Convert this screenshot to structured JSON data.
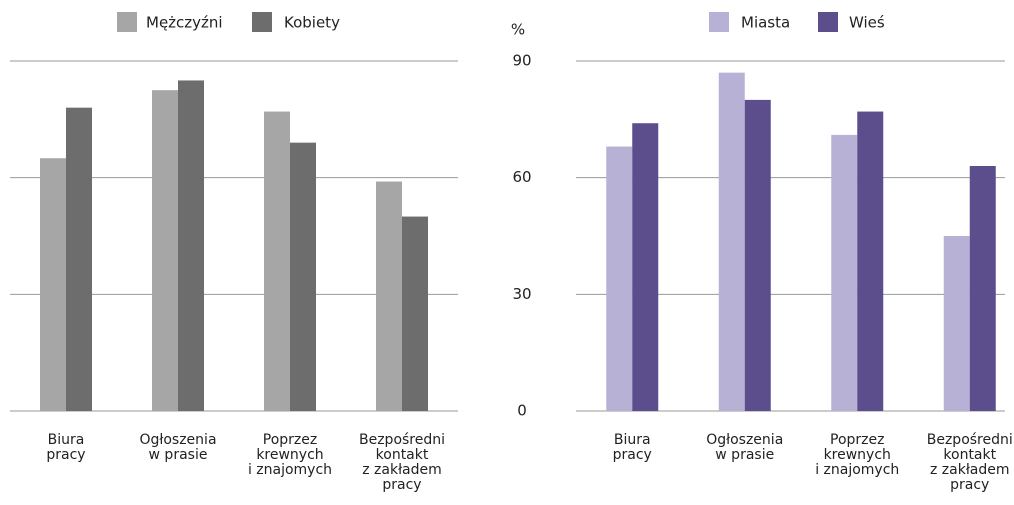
{
  "chart_data": [
    {
      "type": "bar",
      "categories": [
        "Biura\npracy",
        "Ogłoszenia\nw prasie",
        "Poprzez\nkrewnych\ni znajomych",
        "Bezpośredni\nkontakt\nz zakładem\npracy"
      ],
      "series": [
        {
          "name": "Mężczyźni",
          "color": "#a6a6a6",
          "values": [
            65,
            82.5,
            77,
            59
          ]
        },
        {
          "name": "Kobiety",
          "color": "#6d6d6d",
          "values": [
            78,
            85,
            69,
            50
          ]
        }
      ],
      "ylim": [
        0,
        90
      ],
      "yticks": [
        0,
        30,
        60,
        90
      ],
      "ytick_labels": false,
      "grid": true
    },
    {
      "type": "bar",
      "categories": [
        "Biura\npracy",
        "Ogłoszenia\nw prasie",
        "Poprzez\nkrewnych\ni znajomych",
        "Bezpośredni\nkontakt\nz zakładem\npracy"
      ],
      "series": [
        {
          "name": "Miasta",
          "color": "#b8b1d6",
          "values": [
            68,
            87,
            71,
            45
          ]
        },
        {
          "name": "Wieś",
          "color": "#5c4e8c",
          "values": [
            74,
            80,
            77,
            63
          ]
        }
      ],
      "ylim": [
        0,
        90
      ],
      "yticks": [
        0,
        30,
        60,
        90
      ],
      "ytick_labels": true,
      "y_unit": "%",
      "grid": true
    }
  ]
}
